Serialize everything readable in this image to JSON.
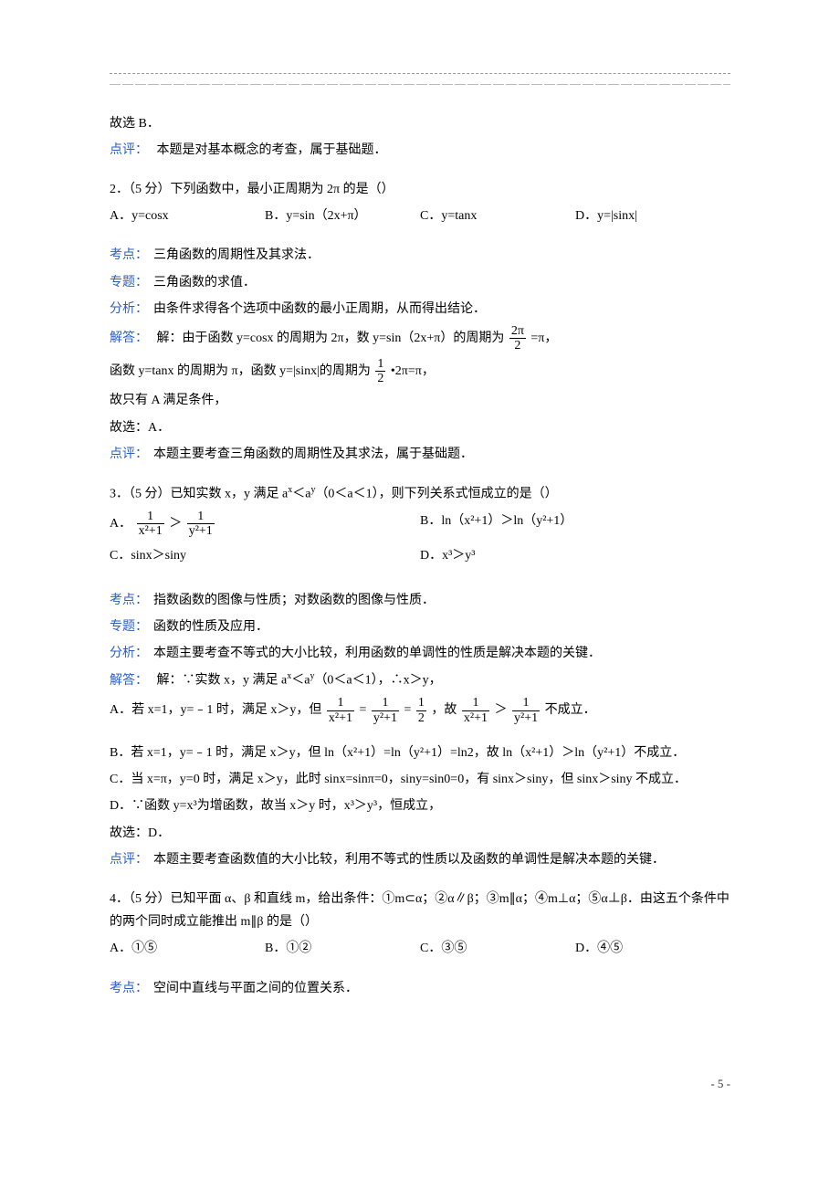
{
  "colors": {
    "label_blue": "#2b5fc1",
    "body_text": "#000000",
    "background": "#ffffff",
    "divider": "#999999"
  },
  "typography": {
    "body_fontsize_pt": 10.5,
    "line_height": 1.8,
    "font_family": "SimSun"
  },
  "page_footer": "- 5 -",
  "pre": {
    "line1": "故选 B．",
    "review_label": "点评：",
    "review_text": "本题是对基本概念的考查，属于基础题．"
  },
  "q2": {
    "stem": "2．（5 分）下列函数中，最小正周期为 2π 的是（）",
    "A": "A．y=cosx",
    "B": "B．y=sin（2x+π）",
    "C": "C．y=tanx",
    "D": "D．y=|sinx|",
    "kaodian_l": "考点：",
    "kaodian_t": "三角函数的周期性及其求法．",
    "zhuanti_l": "专题：",
    "zhuanti_t": "三角函数的求值．",
    "fenxi_l": "分析：",
    "fenxi_t": "由条件求得各个选项中函数的最小正周期，从而得出结论．",
    "jieda_l": "解答：",
    "jieda_t1a": "解：由于函数 y=cosx 的周期为 2π，数 y=sin（2x+π）的周期为",
    "jieda_f1_num": "2π",
    "jieda_f1_den": "2",
    "jieda_t1b": "=π，",
    "jieda_t2a": "函数 y=tanx 的周期为 π，函数 y=|sinx|的周期为",
    "jieda_f2_num": "1",
    "jieda_f2_den": "2",
    "jieda_t2b": "•2π=π，",
    "jieda_t3": "故只有 A 满足条件，",
    "jieda_t4": "故选：A．",
    "review_l": "点评：",
    "review_t": "本题主要考查三角函数的周期性及其求法，属于基础题．"
  },
  "q3": {
    "stem_a": "3．（5 分）已知实数 x，y 满足 a",
    "stem_b": "＜a",
    "stem_c": "（0＜a＜1），则下列关系式恒成立的是（）",
    "A_pre": "A．",
    "A_f1_num": "1",
    "A_f1_den": "x²+1",
    "A_gt": "＞",
    "A_f2_num": "1",
    "A_f2_den": "y²+1",
    "B": "B．ln（x²+1）＞ln（y²+1）",
    "C": "C．sinx＞siny",
    "D": "D．x³＞y³",
    "kaodian_l": "考点：",
    "kaodian_t": "指数函数的图像与性质；对数函数的图像与性质．",
    "zhuanti_l": "专题：",
    "zhuanti_t": "函数的性质及应用．",
    "fenxi_l": "分析：",
    "fenxi_t": "本题主要考查不等式的大小比较，利用函数的单调性的性质是解决本题的关键．",
    "jieda_l": "解答：",
    "jieda_t1a": "解：∵实数 x，y 满足 a",
    "jieda_t1b": "＜a",
    "jieda_t1c": "（0＜a＜1），∴x＞y，",
    "A_line_a": "A．若 x=1，y=﹣1 时，满足 x＞y，但",
    "A_fa_num": "1",
    "A_fa_den": "x²+1",
    "A_eq1": "=",
    "A_fb_num": "1",
    "A_fb_den": "y²+1",
    "A_eq2": "=",
    "A_fc_num": "1",
    "A_fc_den": "2",
    "A_mid": "，故",
    "A_fd_num": "1",
    "A_fd_den": "x²+1",
    "A_gt2": "＞",
    "A_fe_num": "1",
    "A_fe_den": "y²+1",
    "A_tail": "不成立．",
    "B_line": "B．若 x=1，y=﹣1 时，满足 x＞y，但 ln（x²+1）=ln（y²+1）=ln2，故 ln（x²+1）＞ln（y²+1）不成立．",
    "C_line": "C．当 x=π，y=0 时，满足 x＞y，此时 sinx=sinπ=0，siny=sin0=0，有 sinx＞siny，但 sinx＞siny 不成立．",
    "D_line": "D．∵函数 y=x³为增函数，故当 x＞y 时，x³＞y³，恒成立，",
    "final": "故选：D．",
    "review_l": "点评：",
    "review_t": "本题主要考查函数值的大小比较，利用不等式的性质以及函数的单调性是解决本题的关键．"
  },
  "q4": {
    "stem": "4．（5 分）已知平面 α、β 和直线 m，给出条件：①m⊂α；②α∥β；③m∥α；④m⊥α；⑤α⊥β．由这五个条件中的两个同时成立能推出 m∥β 的是（）",
    "A": "A．①⑤",
    "B": "B．①②",
    "C": "C．③⑤",
    "D": "D．④⑤",
    "kaodian_l": "考点：",
    "kaodian_t": "空间中直线与平面之间的位置关系．"
  }
}
